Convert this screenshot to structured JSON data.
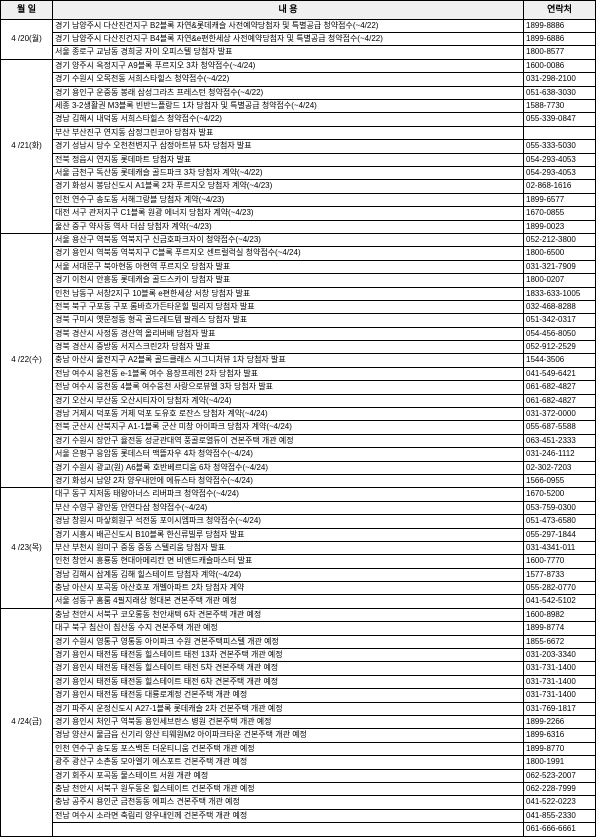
{
  "header": {
    "date": "월 일",
    "content": "내 용",
    "contact": "연락처"
  },
  "groups": [
    {
      "date": "4 /20(월)",
      "rows": [
        {
          "content": "경기 남양주시 다산진건지구 B2블록 자연&롯데캐슬 사전예약당첨자 및 특별공급 청약접수(~4/22)",
          "contact": "1899-8886"
        },
        {
          "content": "경기 남양주시 다산진건지구 B4블록 자연&e편한세상 사전예약당첨자 및 특별공급 청약접수(~4/22)",
          "contact": "1899-6886"
        },
        {
          "content": "서울 종로구 교남동 경희궁 자이 오피스텔 당첨자 발표",
          "contact": "1800-8577"
        }
      ]
    },
    {
      "date": "4 /21(화)",
      "rows": [
        {
          "content": "경기 양주시 옥정지구 A9블록 푸르지오 3차 청약접수(~4/24)",
          "contact": "1600-0086"
        },
        {
          "content": "경기 수원시 오목천동 서희스타힐스 청약접수(~4/22)",
          "contact": "031-298-2100"
        },
        {
          "content": "경기 용인구 운중동 봉래 삼성그라츠 프레스턴 청약접수(~4/22)",
          "contact": "051-638-3030"
        },
        {
          "content": "세종 3-2생활권 M3블록 빈반느플랑드 1차 당첨자 및 특별공급 청약접수(~4/24)",
          "contact": "1588-7730"
        },
        {
          "content": "경남 김해시 내덕동 서희스타힐스 청약접수(~4/22)",
          "contact": "055-339-0847"
        },
        {
          "content": "부산 부산진구 연지동 삼정그린코아 당첨자 발표",
          "contact": ""
        },
        {
          "content": "경기 성남시 당수 오천천변지구 삼정아트뷰 5차 당첨자 발표",
          "contact": "055-333-5030"
        },
        {
          "content": "전북 정읍시 연지동 롯데마트 당첨자 발표",
          "contact": "054-293-4053"
        },
        {
          "content": "서울 금천구 독산동 롯데캐슬 골드파크 3차 당첨자 계약(~4/22)",
          "contact": "054-293-4053"
        },
        {
          "content": "경기 화성시 봉담신도시 A1블록 2차 푸르지오 당첨자 계약(~4/23)",
          "contact": "02-868-1616"
        },
        {
          "content": "인천 연수구 송도동 서해그랑블 당첨자 계약(~4/23)",
          "contact": "1899-6577"
        },
        {
          "content": "대전 서구 관저지구 C1블록 원광 에너지 당첨자 계약(~4/23)",
          "contact": "1670-0855"
        },
        {
          "content": "울산 중구 약사동 역사 더샵 당첨자 계약(~4/23)",
          "contact": "1899-0023"
        }
      ]
    },
    {
      "date": "4 /22(수)",
      "rows": [
        {
          "content": "서울 용산구 역북동 역북지구 신금호파크자이 청약접수(~4/23)",
          "contact": "052-212-3800"
        },
        {
          "content": "경기 용인시 역북동 역북지구 C블록 푸르지오 센트럴럭실 청약접수(~4/24)",
          "contact": "1800-6500"
        },
        {
          "content": "서울 서대문구 북아현동 아현역 푸르지오 당첨자 발표",
          "contact": "031-321-7909"
        },
        {
          "content": "경기 이천시 안흥동 롯데캐슬 골드스카이 당첨자 발표",
          "contact": "1800-0207"
        },
        {
          "content": "인천 남동구 서창2지구 10블록 e편한세상 서창 당첨자 발표",
          "contact": "1833-633-1005"
        },
        {
          "content": "전북 북구 구포동 구포 롬바흐가든타운힐 빌리지 당첨자 발표",
          "contact": "032-468-8288"
        },
        {
          "content": "경북 구미시 옛문정동 형곡 골드레드템 팔레스 당첨자 발표",
          "contact": "051-342-0317"
        },
        {
          "content": "경북 경산시 사정동 경산역 올리버배 당첨자 발표",
          "contact": "054-456-8050"
        },
        {
          "content": "경북 경산시 중방동 서지스크린2차 당첨자 발표",
          "contact": "052-912-2529"
        },
        {
          "content": "충남 아산시 울전지구 A2블록 골드클래스 시그니처뷰 1차 당첨자 발표",
          "contact": "1544-3506"
        },
        {
          "content": "전남 여수시 응천동 e-1블록 여수 용장프레전 2차 당첨자 발표",
          "contact": "041-549-6421"
        },
        {
          "content": "전남 여수시 웅천동 4블록 여수웅천 사랑으로뷰엘 3차 당첨자 발표",
          "contact": "061-682-4827"
        },
        {
          "content": "경기 오산시 부산동 오산시티자이 당첨자 계약(~4/24)",
          "contact": "061-682-4827"
        },
        {
          "content": "경남 거제시 덕포동 거제 덕포 도유호 로잔스 당첨자 계약(~4/24)",
          "contact": "031-372-0000"
        },
        {
          "content": "전북 군산시 산북지구 A1-1블록 군산 미창 아이파크 당첨자 계약(~4/24)",
          "contact": "055-687-5588"
        },
        {
          "content": "경기 수원시 장안구 율전동 성균관대역 풍골로열듀이 견본주택 개관 예정",
          "contact": "063-451-2333"
        },
        {
          "content": "서울 은평구 응암동 롯데스터 맥뜰자우 4차 청약접수(~4/24)",
          "contact": "031-246-1112"
        },
        {
          "content": "경기 수원시 광교(원) A6블록 호반베르디움 6차 청약접수(~4/24)",
          "contact": "02-302-7203"
        },
        {
          "content": "경기 화성시 남양 2차 양우내안에 에듀스타 청약접수(~4/24)",
          "contact": "1566-0955"
        }
      ]
    },
    {
      "date": "4 /23(목)",
      "rows": [
        {
          "content": "대구 동구 지저동 태왕아너스 리버파크 청약접수(~4/24)",
          "contact": "1670-5200"
        },
        {
          "content": "부산 수영구 광안동 안연다삼 청약접수(~4/24)",
          "contact": "053-759-0300"
        },
        {
          "content": "경남 창원시 마샇회원구 석전동 포이시엠파크 청약접수(~4/24)",
          "contact": "051-473-6580"
        },
        {
          "content": "경기 시흥시 배곤신도시 B10블록 한신류빌루 당첨자 발표",
          "contact": "055-297-1844"
        },
        {
          "content": "부산 부천시 원미구 중동 중동 스텔리움 당첨자 발표",
          "contact": "031-4341-011"
        },
        {
          "content": "인천 창안시 흥룡동 현대아메리칸 면 비앤드캐슬마스터 발표",
          "contact": "1600-7770"
        },
        {
          "content": "경남 김해시 삼계동 김해 힐스테이트 당첨자 계약(~4/24)",
          "contact": "1577-8733"
        },
        {
          "content": "충남 아산시 포곡동 아산호포 개벨아파트 2차 당첨자 계약",
          "contact": "055-282-0770"
        },
        {
          "content": "서울 성동구 홈룸 4필지래상 형대본 견본주택 개관 예정",
          "contact": "041-542-5102"
        }
      ]
    },
    {
      "date": "4 /24(금)",
      "rows": [
        {
          "content": "충남 천안시 서북구 코오롱동 천안새텍 6차 견본주택 개관 예정",
          "contact": "1600-8982"
        },
        {
          "content": "대구 북구 침산이 침산동 수지 견본주택 개관 예정",
          "contact": "1899-8774"
        },
        {
          "content": "경기 수원시 영통구 영통동 아이파크 수원 견본주택피스텔 개관 예정",
          "contact": "1855-6672"
        },
        {
          "content": "경기 용인시 태전동 태전동 힐스테이트 태전 13차 견본주택 개관 예정",
          "contact": "031-203-3340"
        },
        {
          "content": "경기 용인시 태전동 태전동 힐스테이트 태전 5차 견본주택 개관 예정",
          "contact": "031-731-1400"
        },
        {
          "content": "경기 용인시 태전동 태전동 힐스테이트 태전 6차 견본주택 개관 예정",
          "contact": "031-731-1400"
        },
        {
          "content": "경기 용인시 태전동 태전동 대룡로계정 건본주택 개관 예정",
          "contact": "031-731-1400"
        },
        {
          "content": "경기 파주시 운정신도시 A27-1블록 롯데캐슬 2차 건본주택 개관 예정",
          "contact": "031-769-1817"
        },
        {
          "content": "경기 용인시 처인구 역북동 용인세브란스 병원 건본주택 개관 예정",
          "contact": "1899-2266"
        },
        {
          "content": "경남 양산시 물금읍 신기리 양산 티웨원M2 아이파크타운 건본주택 개관 예정",
          "contact": "1899-6316"
        },
        {
          "content": "인천 연수구 송도동 포스백돈 더운티니움 건본주택 개관 예정",
          "contact": "1899-8770"
        },
        {
          "content": "광주 광산구 소촌동 모아엘기 에스포트 건본주택 개관 예정",
          "contact": "1800-1991"
        },
        {
          "content": "경기 회주시 포곡동 물스테이트 서원 개관 예정",
          "contact": "062-523-2007"
        },
        {
          "content": "충남 천안시 서북구 원두동온 힐스테이트 건본주택 개관 예정",
          "contact": "062-228-7999"
        },
        {
          "content": "충남 공주시 용인군 금천동동 에피스 견본주택 개관 예정",
          "contact": "041-522-0223"
        },
        {
          "content": "전남 여수시 소라면 축림리 양우내인께 건본주택 개관 예정",
          "contact": "041-855-2330"
        },
        {
          "content": "",
          "contact": "061-666-6661"
        }
      ]
    }
  ]
}
